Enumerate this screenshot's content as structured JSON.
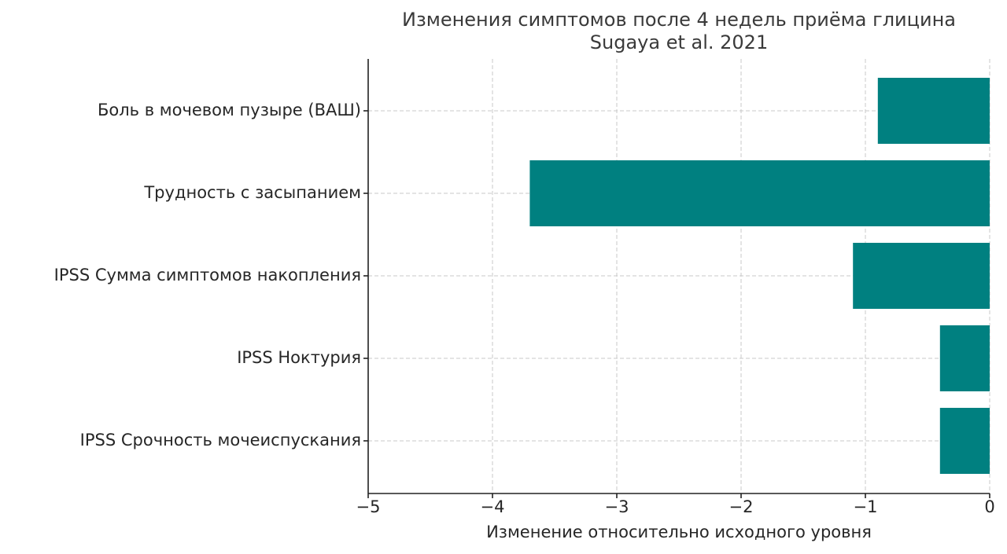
{
  "chart_data": {
    "type": "barh",
    "title": "Изменения симптомов после 4 недель приёма глицина",
    "subtitle": "Sugaya et al. 2021",
    "xlabel": "Изменение относительно исходного уровня",
    "categories": [
      "Боль в мочевом пузыре (ВАШ)",
      "Трудность с засыпанием",
      "IPSS Сумма симптомов накопления",
      "IPSS Ноктурия",
      "IPSS Срочность мочеиспускания"
    ],
    "values": [
      -0.9,
      -3.7,
      -1.1,
      -0.4,
      -0.4
    ],
    "color": "#008080",
    "xlim": [
      -5,
      0
    ],
    "xticks": [
      {
        "value": -5,
        "label": "−5"
      },
      {
        "value": -4,
        "label": "−4"
      },
      {
        "value": -3,
        "label": "−3"
      },
      {
        "value": -2,
        "label": "−2"
      },
      {
        "value": -1,
        "label": "−1"
      },
      0
    ],
    "grid": true
  }
}
